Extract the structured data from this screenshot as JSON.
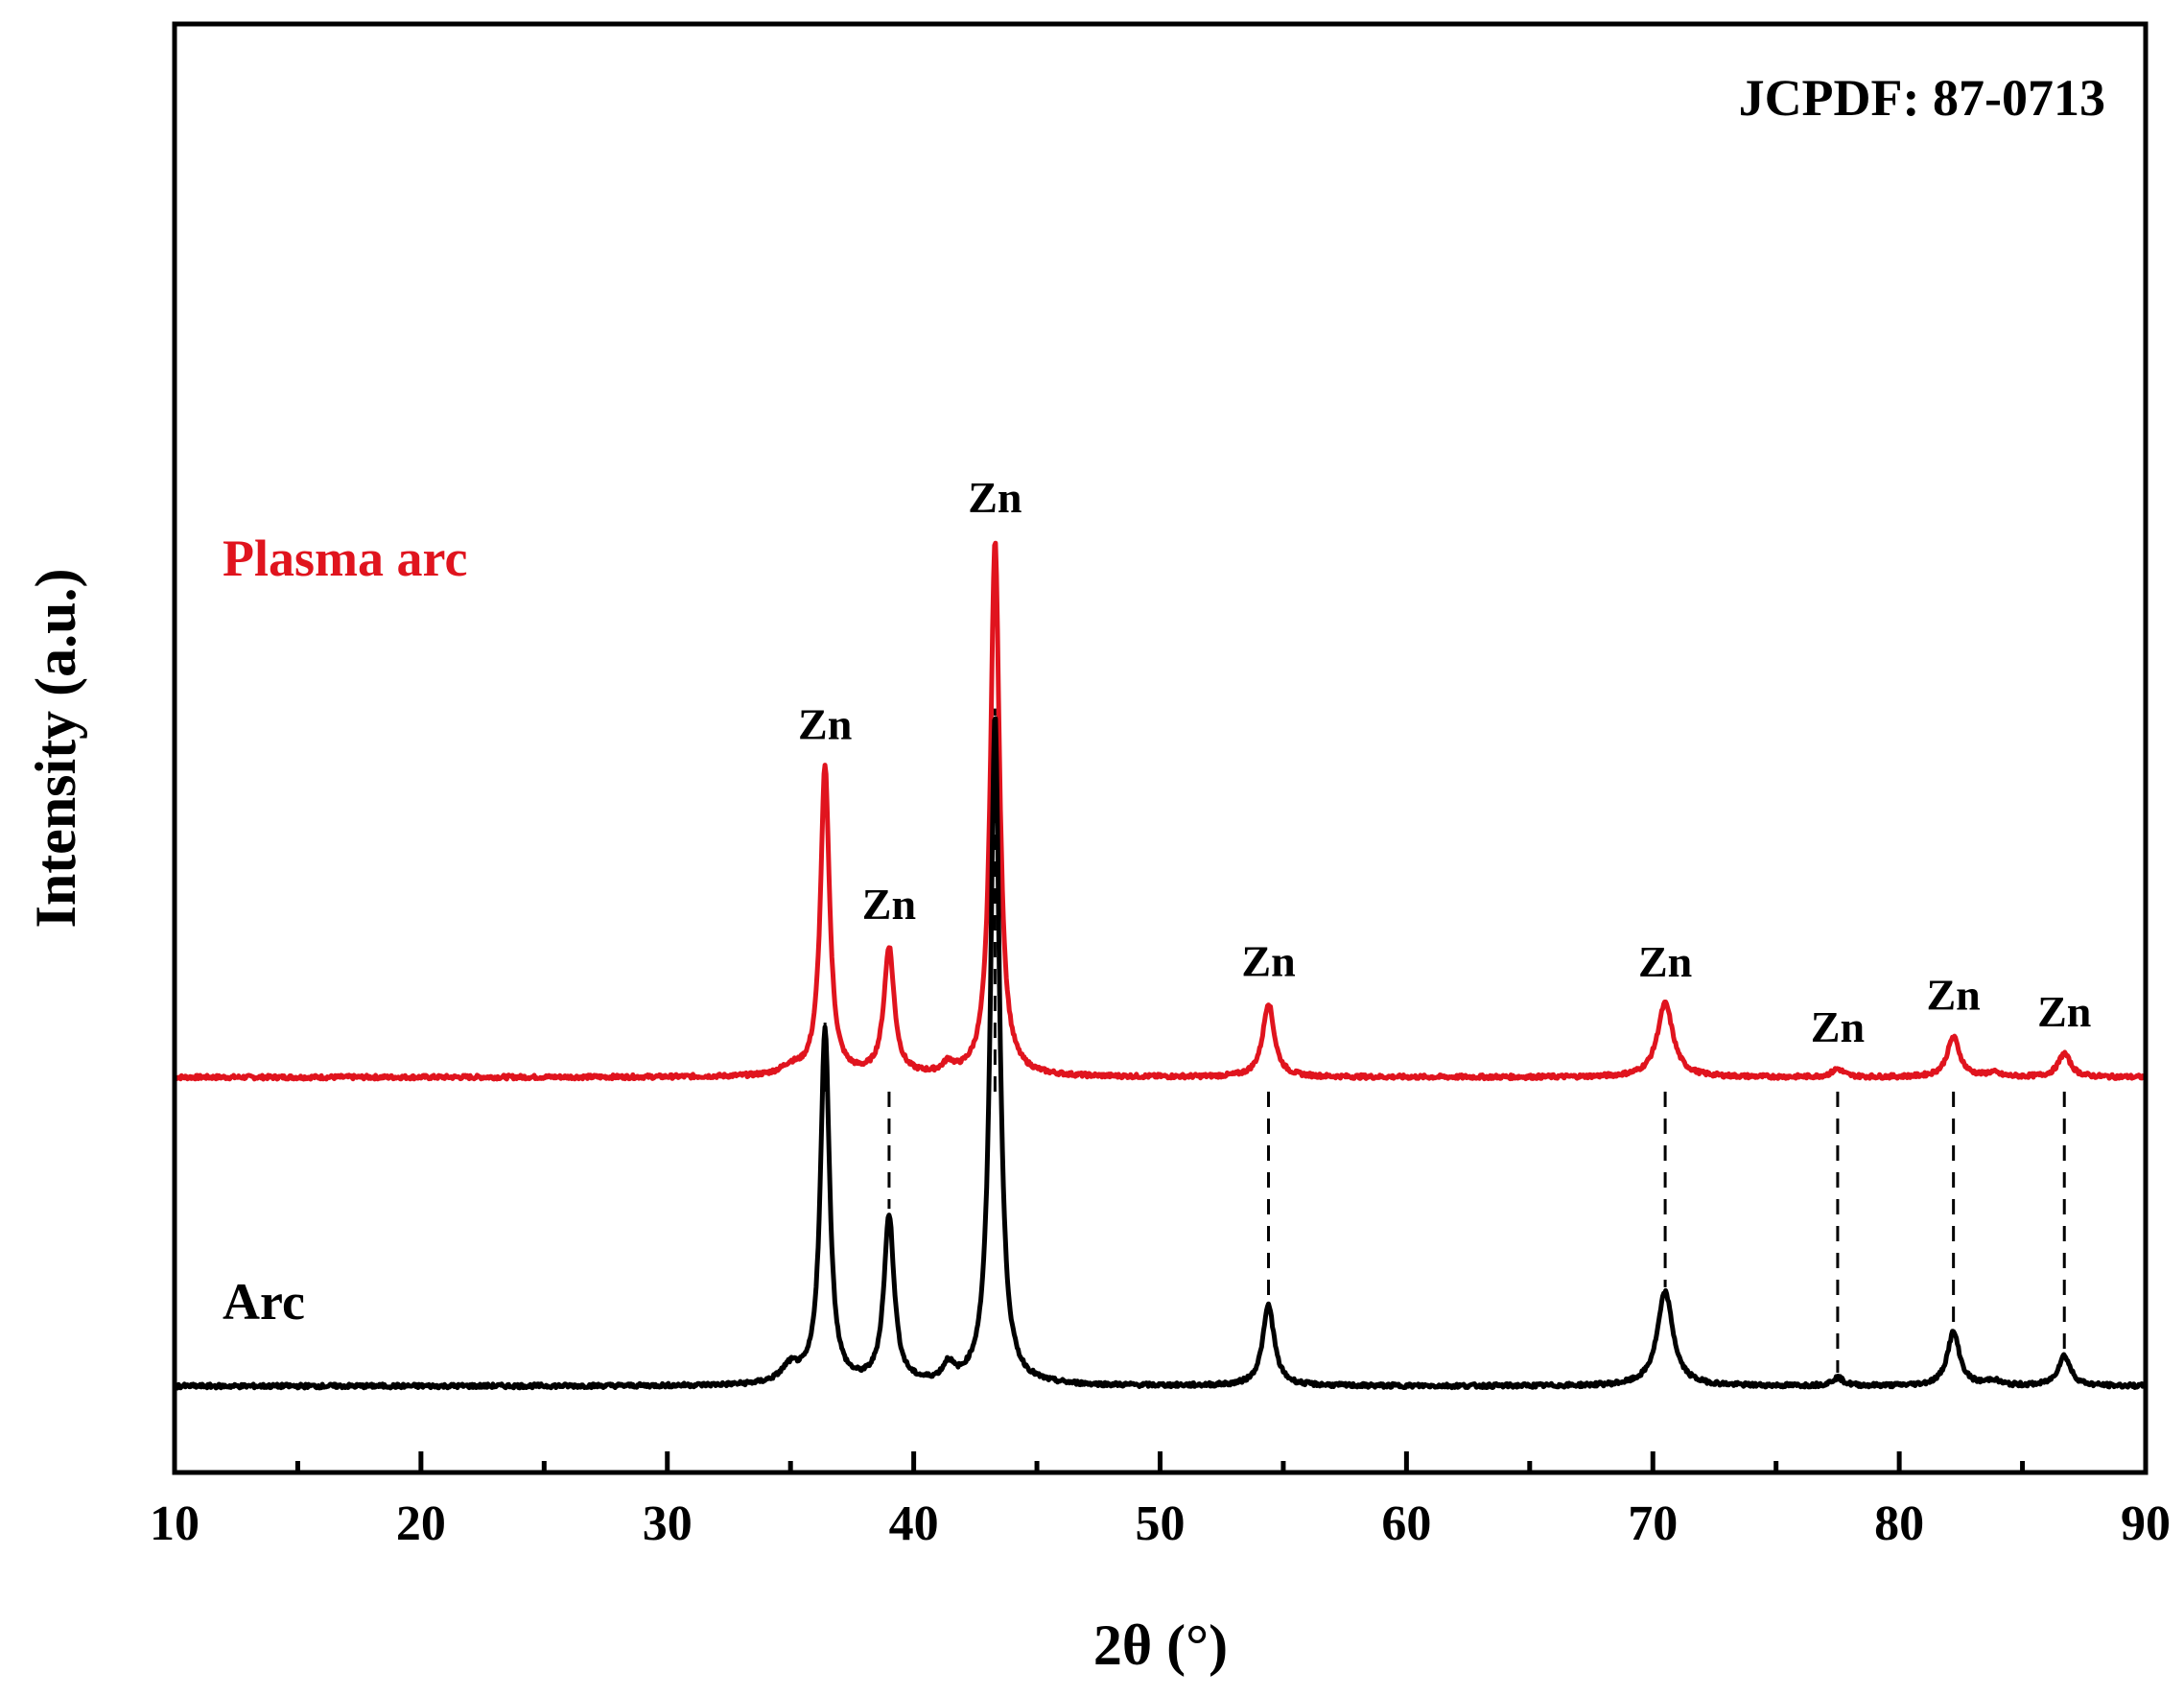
{
  "chart_data": {
    "type": "line",
    "title": "",
    "xlabel": "2θ (°)",
    "ylabel": "Intensity (a.u.)",
    "xlim": [
      10,
      90
    ],
    "x_ticks": [
      10,
      20,
      30,
      40,
      50,
      60,
      70,
      80,
      90
    ],
    "y_ticks": [],
    "grid": false,
    "reference": "JCPDF: 87-0713",
    "series": [
      {
        "name": "Plasma arc",
        "color": "#e0141e",
        "baseline": 0.46,
        "peaks": [
          {
            "x": 35.0,
            "h": 0.012,
            "w": 0.45
          },
          {
            "x": 36.4,
            "h": 0.46,
            "w": 0.22
          },
          {
            "x": 39.0,
            "h": 0.19,
            "w": 0.25
          },
          {
            "x": 41.4,
            "h": 0.015,
            "w": 0.25
          },
          {
            "x": 43.3,
            "h": 0.8,
            "w": 0.22
          },
          {
            "x": 54.4,
            "h": 0.11,
            "w": 0.28
          },
          {
            "x": 70.5,
            "h": 0.11,
            "w": 0.38
          },
          {
            "x": 77.5,
            "h": 0.012,
            "w": 0.28
          },
          {
            "x": 82.2,
            "h": 0.06,
            "w": 0.3
          },
          {
            "x": 83.8,
            "h": 0.006,
            "w": 0.3
          },
          {
            "x": 86.7,
            "h": 0.035,
            "w": 0.3
          }
        ]
      },
      {
        "name": "Arc",
        "color": "#000000",
        "baseline": 0.0,
        "peaks": [
          {
            "x": 35.0,
            "h": 0.025,
            "w": 0.45
          },
          {
            "x": 36.4,
            "h": 0.53,
            "w": 0.22
          },
          {
            "x": 39.0,
            "h": 0.25,
            "w": 0.25
          },
          {
            "x": 41.4,
            "h": 0.025,
            "w": 0.25
          },
          {
            "x": 43.3,
            "h": 1.0,
            "w": 0.22
          },
          {
            "x": 54.4,
            "h": 0.12,
            "w": 0.28
          },
          {
            "x": 70.5,
            "h": 0.14,
            "w": 0.38
          },
          {
            "x": 77.5,
            "h": 0.012,
            "w": 0.28
          },
          {
            "x": 82.2,
            "h": 0.08,
            "w": 0.3
          },
          {
            "x": 83.8,
            "h": 0.008,
            "w": 0.3
          },
          {
            "x": 86.7,
            "h": 0.045,
            "w": 0.3
          }
        ]
      }
    ],
    "annotations": [
      {
        "text": "Zn",
        "x": 36.4
      },
      {
        "text": "Zn",
        "x": 39.0
      },
      {
        "text": "Zn",
        "x": 43.3
      },
      {
        "text": "Zn",
        "x": 54.4
      },
      {
        "text": "Zn",
        "x": 70.5
      },
      {
        "text": "Zn",
        "x": 77.5
      },
      {
        "text": "Zn",
        "x": 82.2
      },
      {
        "text": "Zn",
        "x": 86.7
      }
    ]
  }
}
